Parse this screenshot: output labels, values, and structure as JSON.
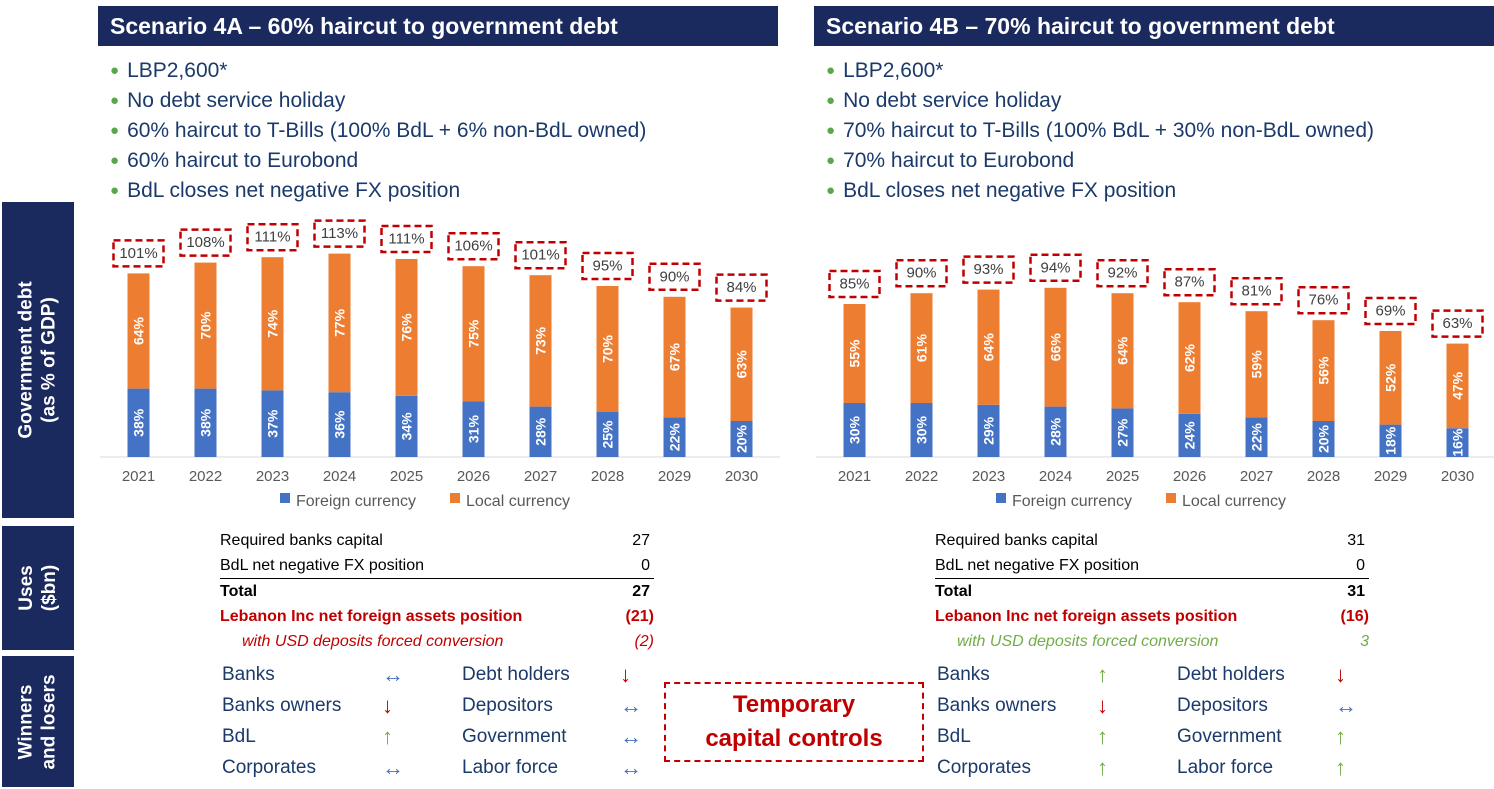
{
  "side_labels": {
    "government_debt": "Government debt\n(as % of GDP)",
    "uses": "Uses\n($bn)",
    "winners_losers": "Winners\nand losers"
  },
  "colors": {
    "foreign": "#4472c4",
    "local": "#ed7d31",
    "navy": "#1b2a5e",
    "red": "#c00000",
    "green": "#70ad47",
    "blue_arrow": "#4472c4"
  },
  "scenarios": [
    {
      "title": "Scenario 4A – 60% haircut to government debt",
      "bullets": [
        "LBP2,600*",
        "No debt service holiday",
        "60% haircut to T-Bills (100% BdL + 6% non-BdL owned)",
        "60% haircut to Eurobond",
        "BdL closes net negative FX position"
      ],
      "uses": {
        "required_label": "Required banks capital",
        "required_value": "27",
        "bdl_label": "BdL net negative FX position",
        "bdl_value": "0",
        "total_label": "Total",
        "total_value": "27",
        "net_label": "Lebanon Inc net foreign assets position",
        "net_value": "(21)",
        "conv_label": "with USD deposits forced conversion",
        "conv_value": "(2)",
        "conv_color": "#c00000"
      },
      "winners_losers": [
        {
          "label": "Banks",
          "arrow": "↔",
          "color": "#4472c4"
        },
        {
          "label": "Banks owners",
          "arrow": "↓",
          "color": "#c00000"
        },
        {
          "label": "BdL",
          "arrow": "↑",
          "color": "#70ad47"
        },
        {
          "label": "Corporates",
          "arrow": "↔",
          "color": "#4472c4"
        },
        {
          "label": "Debt holders",
          "arrow": "↓",
          "color": "#c00000"
        },
        {
          "label": "Depositors",
          "arrow": "↔",
          "color": "#4472c4"
        },
        {
          "label": "Government",
          "arrow": "↔",
          "color": "#4472c4"
        },
        {
          "label": "Labor force",
          "arrow": "↔",
          "color": "#4472c4"
        }
      ]
    },
    {
      "title": "Scenario 4B –  70% haircut to government debt",
      "bullets": [
        "LBP2,600*",
        "No debt service holiday",
        "70% haircut to T-Bills (100% BdL + 30% non-BdL owned)",
        "70% haircut to Eurobond",
        "BdL closes net negative FX position"
      ],
      "uses": {
        "required_label": "Required banks capital",
        "required_value": "31",
        "bdl_label": "BdL net negative FX position",
        "bdl_value": "0",
        "total_label": "Total",
        "total_value": "31",
        "net_label": "Lebanon Inc net foreign assets position",
        "net_value": "(16)",
        "conv_label": "with USD deposits forced conversion",
        "conv_value": "3",
        "conv_color": "#70ad47"
      },
      "winners_losers": [
        {
          "label": "Banks",
          "arrow": "↑",
          "color": "#70ad47"
        },
        {
          "label": "Banks owners",
          "arrow": "↓",
          "color": "#c00000"
        },
        {
          "label": "BdL",
          "arrow": "↑",
          "color": "#70ad47"
        },
        {
          "label": "Corporates",
          "arrow": "↑",
          "color": "#70ad47"
        },
        {
          "label": "Debt holders",
          "arrow": "↓",
          "color": "#c00000"
        },
        {
          "label": "Depositors",
          "arrow": "↔",
          "color": "#4472c4"
        },
        {
          "label": "Government",
          "arrow": "↑",
          "color": "#70ad47"
        },
        {
          "label": "Labor force",
          "arrow": "↑",
          "color": "#70ad47"
        }
      ]
    }
  ],
  "temporary_capital_controls": "Temporary\ncapital controls",
  "chart_data": [
    {
      "type": "bar",
      "stacked": true,
      "categories": [
        "2021",
        "2022",
        "2023",
        "2024",
        "2025",
        "2026",
        "2027",
        "2028",
        "2029",
        "2030"
      ],
      "series": [
        {
          "name": "Foreign currency",
          "values": [
            38,
            38,
            37,
            36,
            34,
            31,
            28,
            25,
            22,
            20
          ],
          "labels": [
            "38%",
            "38%",
            "37%",
            "36%",
            "34%",
            "31%",
            "28%",
            "25%",
            "22%",
            "20%"
          ]
        },
        {
          "name": "Local currency",
          "values": [
            64,
            70,
            74,
            77,
            76,
            75,
            73,
            70,
            67,
            63
          ],
          "labels": [
            "64%",
            "70%",
            "74%",
            "77%",
            "76%",
            "75%",
            "73%",
            "70%",
            "67%",
            "63%"
          ]
        }
      ],
      "totals": [
        "101%",
        "108%",
        "111%",
        "113%",
        "111%",
        "106%",
        "101%",
        "95%",
        "90%",
        "84%"
      ],
      "legend": "bottom"
    },
    {
      "type": "bar",
      "stacked": true,
      "categories": [
        "2021",
        "2022",
        "2023",
        "2024",
        "2025",
        "2026",
        "2027",
        "2028",
        "2029",
        "2030"
      ],
      "series": [
        {
          "name": "Foreign currency",
          "values": [
            30,
            30,
            29,
            28,
            27,
            24,
            22,
            20,
            18,
            16
          ],
          "labels": [
            "30%",
            "30%",
            "29%",
            "28%",
            "27%",
            "24%",
            "22%",
            "20%",
            "18%",
            "16%"
          ]
        },
        {
          "name": "Local currency",
          "values": [
            55,
            61,
            64,
            66,
            64,
            62,
            59,
            56,
            52,
            47
          ],
          "labels": [
            "55%",
            "61%",
            "64%",
            "66%",
            "64%",
            "62%",
            "59%",
            "56%",
            "52%",
            "47%"
          ]
        }
      ],
      "totals": [
        "85%",
        "90%",
        "93%",
        "94%",
        "92%",
        "87%",
        "81%",
        "76%",
        "69%",
        "63%"
      ],
      "legend": "bottom"
    }
  ]
}
